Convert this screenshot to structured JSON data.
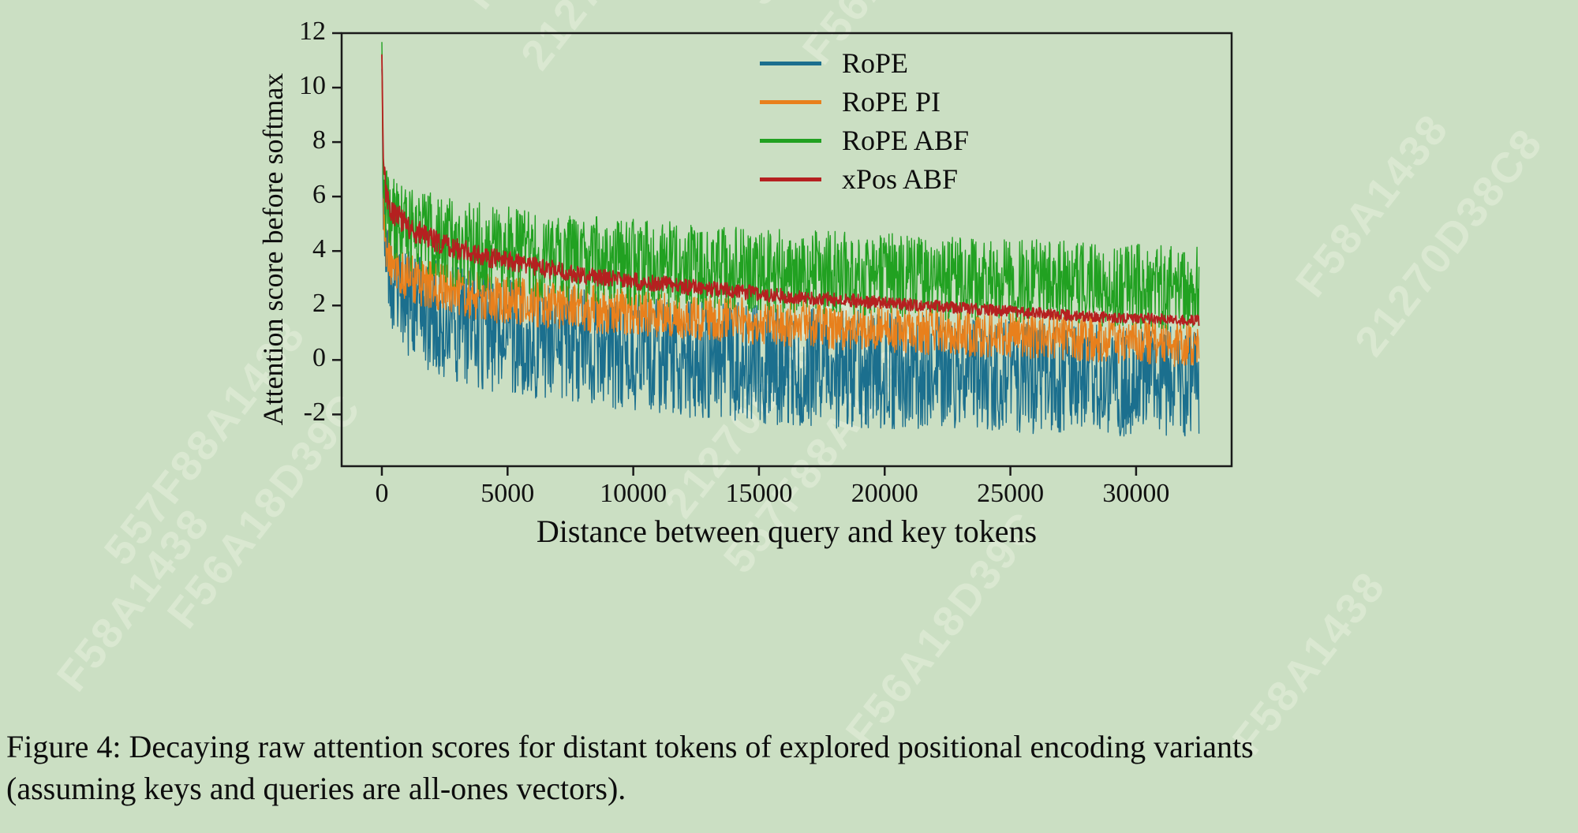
{
  "figure": {
    "caption_line1": "Figure 4: Decaying raw attention scores for distant tokens of explored positional encoding variants",
    "caption_line2": "(assuming keys and queries are all-ones vectors)."
  },
  "watermarks": [
    "F58A1438",
    "21270D38C8",
    "557F88A1438",
    "F56A18D39C"
  ],
  "chart_data": {
    "type": "line",
    "title": "",
    "xlabel": "Distance between query and key tokens",
    "ylabel": "Attention score before softmax",
    "xlim": [
      -1600,
      33800
    ],
    "ylim": [
      -3.9,
      12
    ],
    "xticks": [
      0,
      5000,
      10000,
      15000,
      20000,
      25000,
      30000
    ],
    "yticks": [
      -2,
      0,
      2,
      4,
      6,
      8,
      10,
      12
    ],
    "x_max_data": 32500,
    "grid": false,
    "legend_position": "upper right",
    "background": "#cbdfc3",
    "series": [
      {
        "name": "RoPE",
        "color": "#1b6f8e",
        "width": 1.4,
        "x_anchors": [
          0,
          60,
          150,
          400,
          1000,
          2000,
          4000,
          8000,
          12000,
          16000,
          20000,
          24000,
          28000,
          32500
        ],
        "mean_values": [
          11.0,
          5.5,
          3.8,
          2.8,
          2.1,
          1.6,
          1.1,
          0.5,
          0.1,
          -0.2,
          -0.4,
          -0.55,
          -0.7,
          -0.8
        ],
        "noise_amplitude": [
          0.6,
          1.2,
          1.5,
          1.8,
          2.0,
          2.1,
          2.2,
          2.2,
          2.2,
          2.2,
          2.2,
          2.1,
          2.1,
          2.0
        ]
      },
      {
        "name": "RoPE PI",
        "color": "#e8801c",
        "width": 1.4,
        "x_anchors": [
          0,
          60,
          150,
          400,
          1000,
          2000,
          4000,
          8000,
          12000,
          16000,
          20000,
          24000,
          28000,
          32500
        ],
        "mean_values": [
          11.0,
          5.8,
          4.3,
          3.5,
          3.0,
          2.7,
          2.3,
          1.9,
          1.6,
          1.35,
          1.1,
          0.95,
          0.8,
          0.55
        ],
        "noise_amplitude": [
          0.5,
          0.8,
          0.85,
          0.9,
          0.9,
          0.9,
          0.9,
          0.88,
          0.85,
          0.85,
          0.85,
          0.85,
          0.85,
          0.85
        ]
      },
      {
        "name": "RoPE ABF",
        "color": "#21a121",
        "width": 1.4,
        "x_anchors": [
          0,
          60,
          150,
          400,
          1000,
          2000,
          4000,
          8000,
          12000,
          16000,
          20000,
          24000,
          28000,
          32500
        ],
        "mean_values": [
          11.2,
          6.8,
          5.8,
          5.2,
          4.8,
          4.5,
          4.1,
          3.7,
          3.45,
          3.25,
          3.1,
          2.95,
          2.8,
          2.6
        ],
        "noise_amplitude": [
          0.5,
          1.0,
          1.3,
          1.5,
          1.6,
          1.65,
          1.65,
          1.6,
          1.6,
          1.55,
          1.55,
          1.55,
          1.55,
          1.55
        ]
      },
      {
        "name": "xPos ABF",
        "color": "#b52020",
        "width": 1.8,
        "x_anchors": [
          0,
          60,
          150,
          400,
          1000,
          2000,
          4000,
          8000,
          12000,
          16000,
          20000,
          24000,
          28000,
          32500
        ],
        "mean_values": [
          11.3,
          7.2,
          6.2,
          5.5,
          4.9,
          4.4,
          3.8,
          3.1,
          2.7,
          2.35,
          2.1,
          1.85,
          1.6,
          1.45
        ],
        "noise_amplitude": [
          0.25,
          0.5,
          0.5,
          0.48,
          0.45,
          0.42,
          0.38,
          0.33,
          0.3,
          0.27,
          0.24,
          0.21,
          0.2,
          0.2
        ]
      }
    ]
  }
}
